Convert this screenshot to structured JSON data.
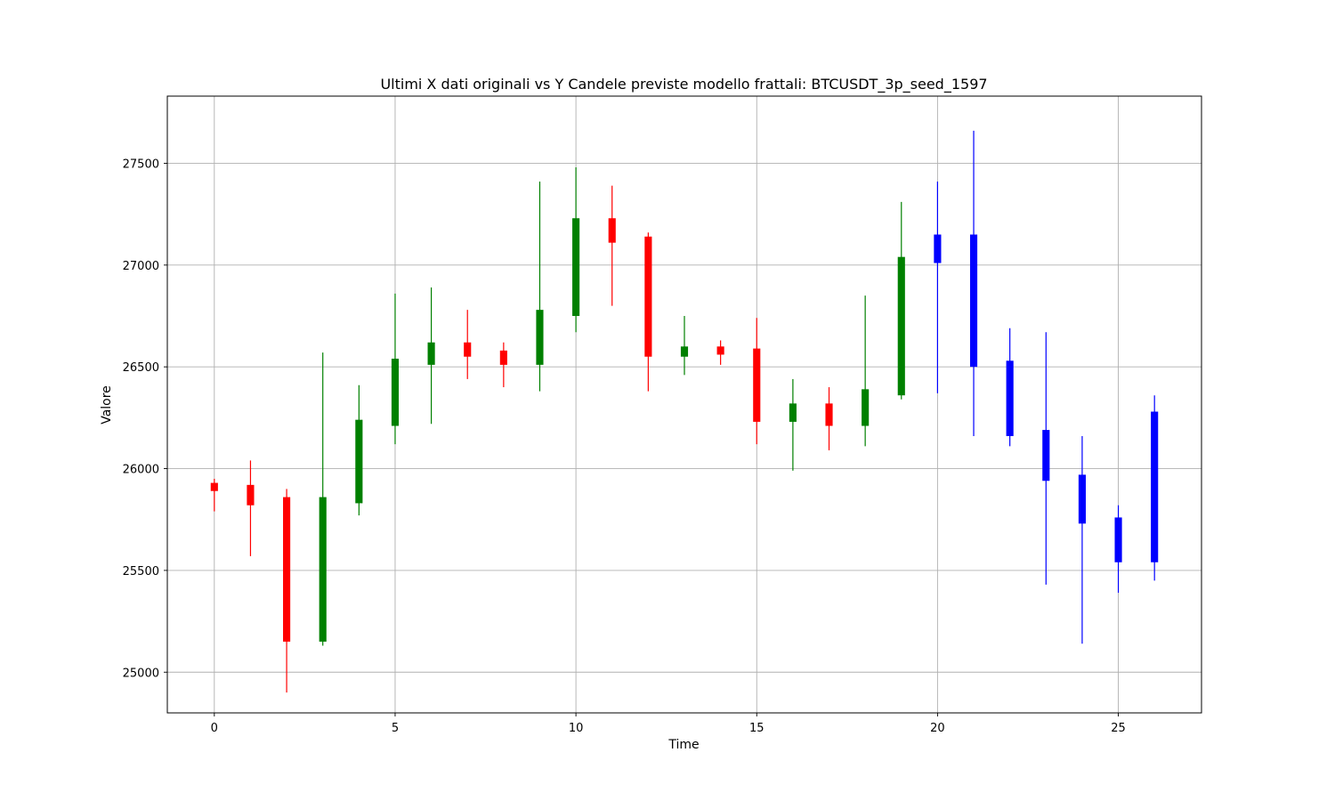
{
  "chart_data": {
    "type": "candlestick",
    "title": "Ultimi X dati originali vs Y Candele previste modello frattali: BTCUSDT_3p_seed_1597",
    "xlabel": "Time",
    "ylabel": "Valore",
    "xlim": [
      -1.3,
      27.3
    ],
    "ylim": [
      24800,
      27830
    ],
    "x_ticks": [
      0,
      5,
      10,
      15,
      20,
      25
    ],
    "y_ticks": [
      25000,
      25500,
      26000,
      26500,
      27000,
      27500
    ],
    "grid": true,
    "colors": {
      "up": "#008000",
      "down": "#ff0000",
      "predicted": "#0000ff",
      "grid": "#b0b0b0"
    },
    "candles": [
      {
        "t": 0,
        "open": 25930,
        "close": 25890,
        "high": 25950,
        "low": 25790,
        "kind": "down"
      },
      {
        "t": 1,
        "open": 25920,
        "close": 25820,
        "high": 26040,
        "low": 25570,
        "kind": "down"
      },
      {
        "t": 2,
        "open": 25860,
        "close": 25150,
        "high": 25900,
        "low": 24900,
        "kind": "down"
      },
      {
        "t": 3,
        "open": 25150,
        "close": 25860,
        "high": 26570,
        "low": 25130,
        "kind": "up"
      },
      {
        "t": 4,
        "open": 25830,
        "close": 26240,
        "high": 26410,
        "low": 25770,
        "kind": "up"
      },
      {
        "t": 5,
        "open": 26210,
        "close": 26540,
        "high": 26860,
        "low": 26120,
        "kind": "up"
      },
      {
        "t": 6,
        "open": 26510,
        "close": 26620,
        "high": 26890,
        "low": 26220,
        "kind": "up"
      },
      {
        "t": 7,
        "open": 26620,
        "close": 26550,
        "high": 26780,
        "low": 26440,
        "kind": "down"
      },
      {
        "t": 8,
        "open": 26580,
        "close": 26510,
        "high": 26620,
        "low": 26400,
        "kind": "down"
      },
      {
        "t": 9,
        "open": 26510,
        "close": 26780,
        "high": 27410,
        "low": 26380,
        "kind": "up"
      },
      {
        "t": 10,
        "open": 26750,
        "close": 27230,
        "high": 27480,
        "low": 26670,
        "kind": "up"
      },
      {
        "t": 11,
        "open": 27230,
        "close": 27110,
        "high": 27390,
        "low": 26800,
        "kind": "down"
      },
      {
        "t": 12,
        "open": 27140,
        "close": 26550,
        "high": 27160,
        "low": 26380,
        "kind": "down"
      },
      {
        "t": 13,
        "open": 26550,
        "close": 26600,
        "high": 26750,
        "low": 26460,
        "kind": "up"
      },
      {
        "t": 14,
        "open": 26600,
        "close": 26560,
        "high": 26630,
        "low": 26510,
        "kind": "down"
      },
      {
        "t": 15,
        "open": 26590,
        "close": 26230,
        "high": 26740,
        "low": 26120,
        "kind": "down"
      },
      {
        "t": 16,
        "open": 26230,
        "close": 26320,
        "high": 26440,
        "low": 25990,
        "kind": "up"
      },
      {
        "t": 17,
        "open": 26320,
        "close": 26210,
        "high": 26400,
        "low": 26090,
        "kind": "down"
      },
      {
        "t": 18,
        "open": 26210,
        "close": 26390,
        "high": 26850,
        "low": 26110,
        "kind": "up"
      },
      {
        "t": 19,
        "open": 26360,
        "close": 27040,
        "high": 27310,
        "low": 26340,
        "kind": "up"
      },
      {
        "t": 20,
        "open": 27150,
        "close": 27010,
        "high": 27410,
        "low": 26370,
        "kind": "predicted"
      },
      {
        "t": 21,
        "open": 27150,
        "close": 26500,
        "high": 27660,
        "low": 26160,
        "kind": "predicted"
      },
      {
        "t": 22,
        "open": 26530,
        "close": 26160,
        "high": 26690,
        "low": 26110,
        "kind": "predicted"
      },
      {
        "t": 23,
        "open": 26190,
        "close": 25940,
        "high": 26670,
        "low": 25430,
        "kind": "predicted"
      },
      {
        "t": 24,
        "open": 25970,
        "close": 25730,
        "high": 26160,
        "low": 25140,
        "kind": "predicted"
      },
      {
        "t": 25,
        "open": 25760,
        "close": 25540,
        "high": 25820,
        "low": 25390,
        "kind": "predicted"
      },
      {
        "t": 26,
        "open": 26280,
        "close": 25540,
        "high": 26360,
        "low": 25450,
        "kind": "predicted"
      }
    ]
  }
}
